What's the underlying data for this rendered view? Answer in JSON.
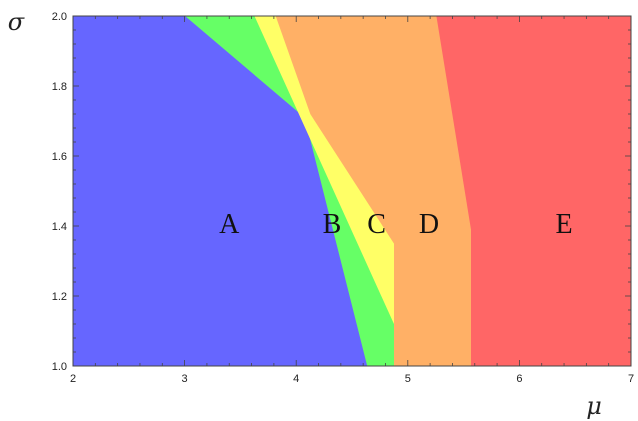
{
  "chart_data": {
    "type": "area",
    "xlabel": "μ",
    "ylabel": "σ",
    "xlim": [
      2,
      7
    ],
    "ylim": [
      1.0,
      2.0
    ],
    "x_ticks": [
      2,
      3,
      4,
      5,
      6,
      7
    ],
    "x_tick_labels": [
      "2",
      "3",
      "4",
      "5",
      "6",
      "7"
    ],
    "y_ticks": [
      1.0,
      1.2,
      1.4,
      1.6,
      1.8,
      2.0
    ],
    "y_tick_labels": [
      "1.0",
      "1.2",
      "1.4",
      "1.6",
      "1.8",
      "2.0"
    ],
    "grid": false,
    "regions": [
      {
        "label": "A",
        "color": "#6666ff",
        "polygon": [
          [
            2.0,
            1.0
          ],
          [
            4.64,
            1.0
          ],
          [
            4.08,
            1.71
          ],
          [
            3.01,
            2.0
          ],
          [
            2.0,
            2.0
          ]
        ],
        "label_at": [
          3.4,
          1.38
        ]
      },
      {
        "label": "B",
        "color": "#66ff66",
        "polygon": [
          [
            4.64,
            1.0
          ],
          [
            4.88,
            1.0
          ],
          [
            4.88,
            1.12
          ],
          [
            4.13,
            1.72
          ],
          [
            3.63,
            2.0
          ],
          [
            3.01,
            2.0
          ],
          [
            4.08,
            1.71
          ]
        ],
        "label_at": [
          4.32,
          1.38
        ]
      },
      {
        "label": "C",
        "color": "#ffff66",
        "polygon": [
          [
            4.88,
            1.12
          ],
          [
            4.88,
            1.35
          ],
          [
            4.13,
            1.72
          ],
          [
            3.82,
            2.0
          ],
          [
            3.63,
            2.0
          ]
        ],
        "label_at": [
          4.72,
          1.38
        ]
      },
      {
        "label": "D",
        "color": "#ffb066",
        "polygon": [
          [
            4.88,
            1.0
          ],
          [
            5.57,
            1.0
          ],
          [
            5.57,
            1.39
          ],
          [
            5.26,
            2.0
          ],
          [
            3.82,
            2.0
          ],
          [
            4.13,
            1.72
          ],
          [
            4.88,
            1.35
          ]
        ],
        "label_at": [
          5.19,
          1.38
        ]
      },
      {
        "label": "E",
        "color": "#ff6666",
        "polygon": [
          [
            5.57,
            1.0
          ],
          [
            7.0,
            1.0
          ],
          [
            7.0,
            2.0
          ],
          [
            5.26,
            2.0
          ],
          [
            5.57,
            1.39
          ]
        ],
        "label_at": [
          6.4,
          1.38
        ]
      }
    ]
  }
}
